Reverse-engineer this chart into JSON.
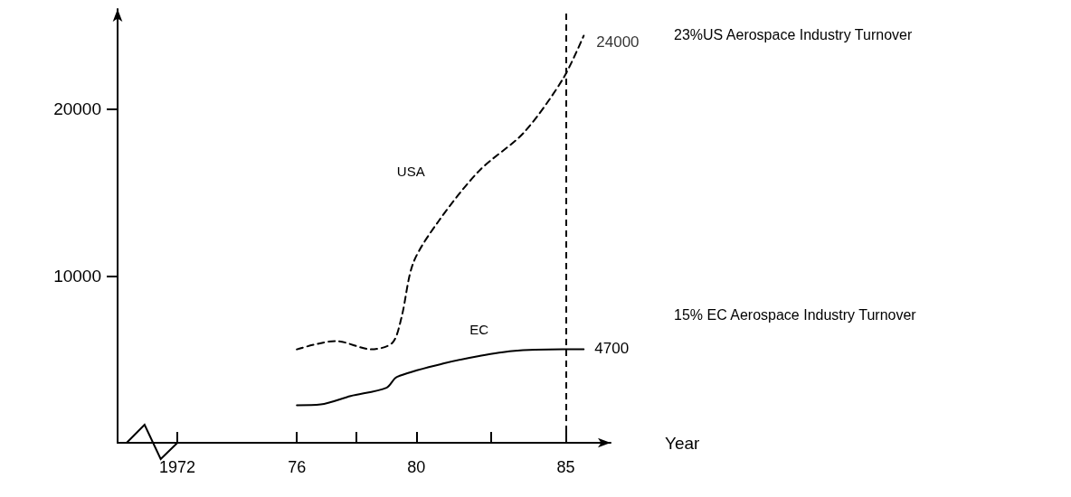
{
  "chart_data": {
    "type": "line",
    "xlabel": "Year",
    "xlim": [
      1970,
      1986.5
    ],
    "xticks": [
      1972,
      {
        "value": 1976,
        "label": "76"
      },
      {
        "value": 1978,
        "label": null
      },
      {
        "value": 1980,
        "label": "80"
      },
      {
        "value": 1982.5,
        "label": null
      },
      {
        "value": 1985,
        "label": "85"
      }
    ],
    "ylim": [
      0,
      26000
    ],
    "yticks": [
      10000,
      20000
    ],
    "grid": false,
    "marker": "none",
    "series": [
      {
        "name": "USA",
        "color": "#000000",
        "line_style": "dashed",
        "x": [
          1976,
          1977.3,
          1978.5,
          1979.2,
          1979.5,
          1979.9,
          1980.75,
          1982.1,
          1983.6,
          1984.9,
          1985.6
        ],
        "values": [
          5600,
          6100,
          5600,
          6000,
          7500,
          10800,
          13300,
          16300,
          18600,
          21800,
          24400
        ]
      },
      {
        "name": "EC",
        "color": "#000000",
        "line_style": "solid",
        "x": [
          1976,
          1976.8,
          1977.8,
          1979,
          1979.35,
          1980.9,
          1982.1,
          1983.2,
          1984.9,
          1985.6
        ],
        "values": [
          2250,
          2300,
          2800,
          3300,
          3950,
          4750,
          5200,
          5500,
          5600,
          5600
        ]
      }
    ],
    "ref_lines": [
      {
        "axis": "x",
        "value": 1985,
        "color": "#000000",
        "line_style": "dashed"
      }
    ],
    "annotations": [
      {
        "text": "24000",
        "x": 1985.6,
        "y": 24000
      },
      "4700",
      "23%US Aerospace Industry Turnover",
      "15% EC Aerospace Industry Turnover"
    ]
  }
}
